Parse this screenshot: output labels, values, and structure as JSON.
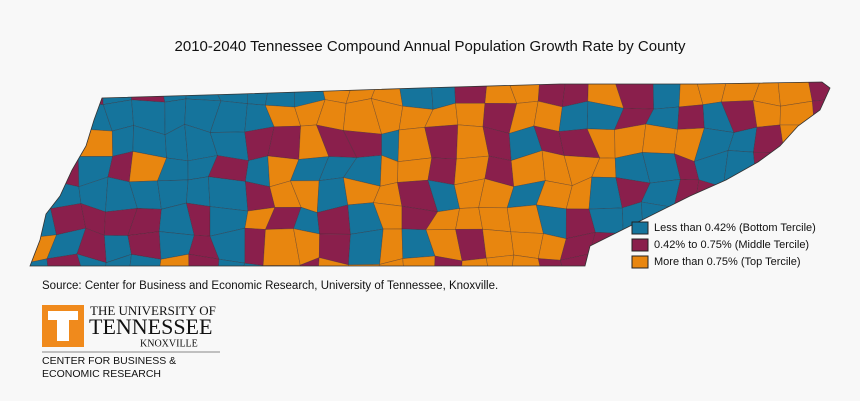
{
  "title": "2010-2040 Tennessee Compound Annual Population Growth Rate by County",
  "legend": [
    {
      "label": "Less than 0.42% (Bottom Tercile)",
      "color": "#15749c"
    },
    {
      "label": "0.42% to 0.75% (Middle Tercile)",
      "color": "#8a1f4c"
    },
    {
      "label": "More than 0.75% (Top Tercile)",
      "color": "#e8860f"
    }
  ],
  "source": "Source: Center for Business and Economic Research, University of Tennessee, Knoxville.",
  "logo": {
    "line1": "THE UNIVERSITY OF",
    "line2": "TENNESSEE",
    "line3": "KNOXVILLE",
    "line4": "CENTER FOR BUSINESS &",
    "line5": "ECONOMIC RESEARCH"
  }
}
